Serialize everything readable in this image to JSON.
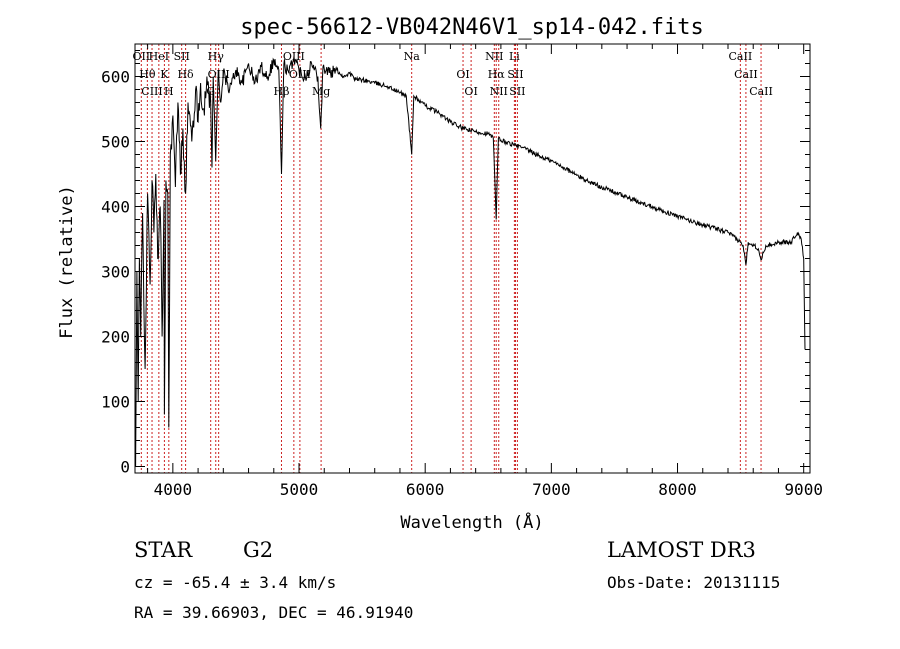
{
  "chart_data": {
    "type": "line",
    "title": "spec-56612-VB042N46V1_sp14-042.fits",
    "xlabel": "Wavelength (Å)",
    "ylabel": "Flux (relative)",
    "xlim": [
      3700,
      9050
    ],
    "ylim": [
      -10,
      650
    ],
    "x_ticks": [
      4000,
      5000,
      6000,
      7000,
      8000,
      9000
    ],
    "x_tick_labels": [
      "4000",
      "5000",
      "6000",
      "7000",
      "8000",
      "9000"
    ],
    "y_ticks": [
      0,
      100,
      200,
      300,
      400,
      500,
      600
    ],
    "y_tick_labels": [
      "0",
      "100",
      "200",
      "300",
      "400",
      "500",
      "600"
    ],
    "grid": false,
    "series": [
      {
        "name": "spectrum",
        "color": "#000000",
        "points": [
          [
            3705,
            0
          ],
          [
            3715,
            300
          ],
          [
            3725,
            100
          ],
          [
            3735,
            320
          ],
          [
            3745,
            200
          ],
          [
            3760,
            390
          ],
          [
            3780,
            150
          ],
          [
            3800,
            420
          ],
          [
            3820,
            280
          ],
          [
            3835,
            440
          ],
          [
            3850,
            360
          ],
          [
            3865,
            450
          ],
          [
            3880,
            320
          ],
          [
            3890,
            360
          ],
          [
            3900,
            400
          ],
          [
            3915,
            200
          ],
          [
            3930,
            410
          ],
          [
            3933,
            80
          ],
          [
            3945,
            440
          ],
          [
            3960,
            420
          ],
          [
            3968,
            60
          ],
          [
            3980,
            480
          ],
          [
            4000,
            540
          ],
          [
            4020,
            430
          ],
          [
            4040,
            560
          ],
          [
            4060,
            450
          ],
          [
            4080,
            520
          ],
          [
            4101,
            420
          ],
          [
            4120,
            560
          ],
          [
            4150,
            500
          ],
          [
            4180,
            580
          ],
          [
            4200,
            530
          ],
          [
            4220,
            590
          ],
          [
            4250,
            540
          ],
          [
            4270,
            600
          ],
          [
            4300,
            560
          ],
          [
            4310,
            460
          ],
          [
            4320,
            600
          ],
          [
            4340,
            470
          ],
          [
            4360,
            610
          ],
          [
            4380,
            560
          ],
          [
            4400,
            605
          ],
          [
            4450,
            580
          ],
          [
            4500,
            610
          ],
          [
            4550,
            590
          ],
          [
            4600,
            620
          ],
          [
            4650,
            590
          ],
          [
            4700,
            615
          ],
          [
            4750,
            600
          ],
          [
            4800,
            625
          ],
          [
            4840,
            610
          ],
          [
            4861,
            450
          ],
          [
            4880,
            620
          ],
          [
            4920,
            605
          ],
          [
            4960,
            630
          ],
          [
            5000,
            610
          ],
          [
            5050,
            600
          ],
          [
            5100,
            620
          ],
          [
            5150,
            600
          ],
          [
            5172,
            520
          ],
          [
            5190,
            615
          ],
          [
            5250,
            605
          ],
          [
            5300,
            610
          ],
          [
            5350,
            600
          ],
          [
            5400,
            605
          ],
          [
            5450,
            595
          ],
          [
            5500,
            595
          ],
          [
            5600,
            590
          ],
          [
            5700,
            585
          ],
          [
            5800,
            575
          ],
          [
            5850,
            570
          ],
          [
            5893,
            480
          ],
          [
            5910,
            570
          ],
          [
            6000,
            555
          ],
          [
            6100,
            545
          ],
          [
            6200,
            530
          ],
          [
            6300,
            520
          ],
          [
            6400,
            515
          ],
          [
            6500,
            512
          ],
          [
            6540,
            505
          ],
          [
            6563,
            380
          ],
          [
            6580,
            505
          ],
          [
            6600,
            502
          ],
          [
            6700,
            495
          ],
          [
            6800,
            488
          ],
          [
            6900,
            478
          ],
          [
            7000,
            470
          ],
          [
            7100,
            460
          ],
          [
            7200,
            448
          ],
          [
            7300,
            438
          ],
          [
            7400,
            430
          ],
          [
            7500,
            422
          ],
          [
            7600,
            414
          ],
          [
            7700,
            406
          ],
          [
            7800,
            400
          ],
          [
            7900,
            392
          ],
          [
            8000,
            385
          ],
          [
            8100,
            378
          ],
          [
            8200,
            372
          ],
          [
            8300,
            366
          ],
          [
            8400,
            360
          ],
          [
            8498,
            345
          ],
          [
            8520,
            340
          ],
          [
            8542,
            310
          ],
          [
            8560,
            345
          ],
          [
            8600,
            342
          ],
          [
            8640,
            335
          ],
          [
            8662,
            318
          ],
          [
            8700,
            340
          ],
          [
            8800,
            345
          ],
          [
            8900,
            345
          ],
          [
            8950,
            360
          ],
          [
            8980,
            350
          ],
          [
            9000,
            320
          ],
          [
            9010,
            180
          ]
        ]
      }
    ],
    "lines": [
      {
        "wavelength": 3750,
        "label": "OII"
      },
      {
        "wavelength": 3798,
        "label": "Hθ"
      },
      {
        "wavelength": 3835,
        "label": "CIII"
      },
      {
        "wavelength": 3889,
        "label": "HeI"
      },
      {
        "wavelength": 3933,
        "label": "K"
      },
      {
        "wavelength": 3968,
        "label": "H"
      },
      {
        "wavelength": 4070,
        "label": "SII"
      },
      {
        "wavelength": 4101,
        "label": "Hδ"
      },
      {
        "wavelength": 4300,
        "label": "G"
      },
      {
        "wavelength": 4340,
        "label": "Hγ"
      },
      {
        "wavelength": 4363,
        "label": "OIII"
      },
      {
        "wavelength": 4861,
        "label": "Hβ"
      },
      {
        "wavelength": 4959,
        "label": "OIII"
      },
      {
        "wavelength": 5007,
        "label": "OIII"
      },
      {
        "wavelength": 5175,
        "label": "Mg"
      },
      {
        "wavelength": 5893,
        "label": "Na"
      },
      {
        "wavelength": 6300,
        "label": "OI"
      },
      {
        "wavelength": 6364,
        "label": "OI"
      },
      {
        "wavelength": 6548,
        "label": "NII"
      },
      {
        "wavelength": 6563,
        "label": "Hα"
      },
      {
        "wavelength": 6583,
        "label": "NII"
      },
      {
        "wavelength": 6707,
        "label": "Li"
      },
      {
        "wavelength": 6716,
        "label": "SII"
      },
      {
        "wavelength": 6731,
        "label": "SII"
      },
      {
        "wavelength": 8498,
        "label": "CaII"
      },
      {
        "wavelength": 8542,
        "label": "CaII"
      },
      {
        "wavelength": 8662,
        "label": "CaII"
      }
    ]
  },
  "info": {
    "object_class": "STAR",
    "subclass": "G2",
    "survey": "LAMOST DR3",
    "cz_text": "cz = -65.4 ± 3.4 km/s",
    "obs_date_text": "Obs-Date: 20131115",
    "coords_text": "RA =  39.66903, DEC =  46.91940"
  },
  "colors": {
    "spectrum": "#000000",
    "line_markers": "#cc2222",
    "axes": "#000000",
    "background": "#ffffff"
  }
}
